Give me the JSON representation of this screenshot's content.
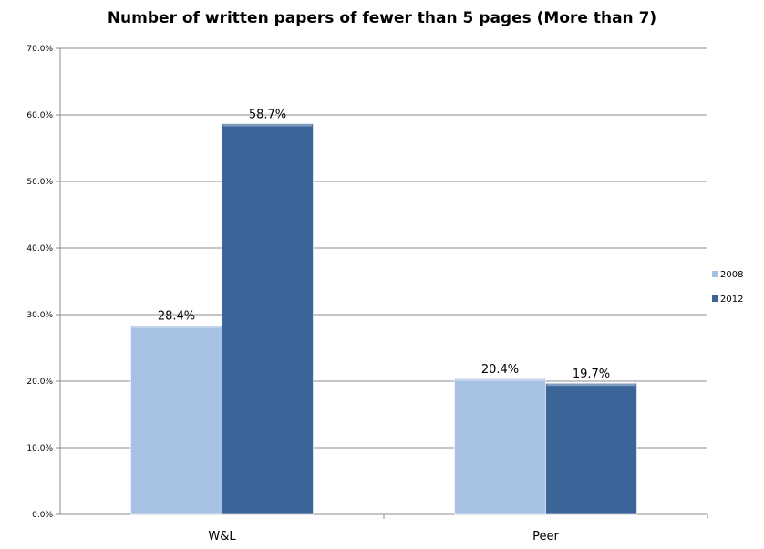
{
  "chart_data": {
    "type": "bar",
    "title": "Number of written papers of fewer than 5 pages (More than 7)",
    "xlabel": "",
    "ylabel": "",
    "categories": [
      "W&L",
      "Peer"
    ],
    "series": [
      {
        "name": "2008",
        "values": [
          28.4,
          20.4
        ],
        "labels": [
          "28.4%",
          "20.4%"
        ],
        "color": "#a6c1e4"
      },
      {
        "name": "2012",
        "values": [
          58.7,
          19.7
        ],
        "labels": [
          "58.7%",
          "19.7%"
        ],
        "color": "#3b6499"
      }
    ],
    "ylim": [
      0,
      70
    ],
    "yticks": [
      0,
      10,
      20,
      30,
      40,
      50,
      60,
      70
    ],
    "ytick_labels": [
      "0.0%",
      "10.0%",
      "20.0%",
      "30.0%",
      "40.0%",
      "50.0%",
      "60.0%",
      "70.0%"
    ],
    "grid": true,
    "legend_position": "right"
  }
}
